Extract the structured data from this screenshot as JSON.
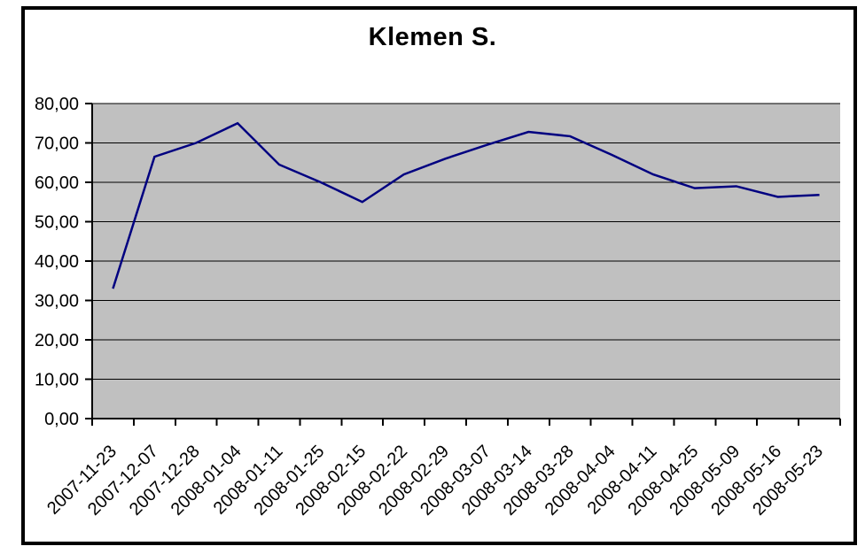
{
  "chart": {
    "title": "Klemen S.",
    "colors": {
      "line": "#000080",
      "plot_background": "#C0C0C0",
      "gridline": "#000000",
      "axis": "#000000",
      "frame_border": "#000000",
      "text": "#000000",
      "page_background": "#FFFFFF"
    }
  },
  "chart_data": {
    "type": "line",
    "title": "Klemen S.",
    "categories": [
      "2007-11-23",
      "2007-12-07",
      "2007-12-28",
      "2008-01-04",
      "2008-01-11",
      "2008-01-25",
      "2008-02-15",
      "2008-02-22",
      "2008-02-29",
      "2008-03-07",
      "2008-03-14",
      "2008-03-28",
      "2008-04-04",
      "2008-04-11",
      "2008-04-25",
      "2008-05-09",
      "2008-05-16",
      "2008-05-23"
    ],
    "series": [
      {
        "name": "Klemen S.",
        "values": [
          33,
          66.5,
          70,
          75,
          64.5,
          60,
          55,
          62,
          66,
          69.5,
          72.8,
          71.7,
          67,
          62,
          58.5,
          59,
          56.3,
          56.8
        ]
      }
    ],
    "xlabel": "",
    "ylabel": "",
    "ylim": [
      0,
      80
    ],
    "ytick_step": 10,
    "ytick_labels": [
      "0,00",
      "10,00",
      "20,00",
      "30,00",
      "40,00",
      "50,00",
      "60,00",
      "70,00",
      "80,00"
    ],
    "grid": true,
    "legend_position": "none",
    "x_label_rotation_deg": 45
  }
}
